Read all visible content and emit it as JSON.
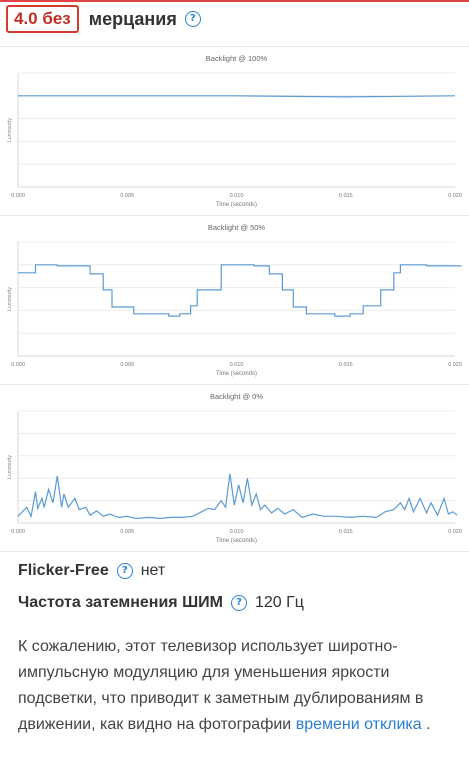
{
  "header": {
    "score": "4.0 без",
    "title": "мерцания",
    "help_glyph": "?"
  },
  "charts": [
    {
      "title": "Backlight @ 100%",
      "ylabel": "Luminosity",
      "xlabel": "Time (seconds)",
      "xticks": [
        "0.000",
        "0.005",
        "0.010",
        "0.015",
        "0.020"
      ]
    },
    {
      "title": "Backlight @ 50%",
      "ylabel": "Luminosity",
      "xlabel": "Time (seconds)",
      "xticks": [
        "0.000",
        "0.005",
        "0.010",
        "0.015",
        "0.020"
      ]
    },
    {
      "title": "Backlight @ 0%",
      "ylabel": "Luminosity",
      "xlabel": "Time (seconds)",
      "xticks": [
        "0.000",
        "0.005",
        "0.010",
        "0.015",
        "0.020"
      ]
    }
  ],
  "chart_data": [
    {
      "type": "line",
      "title": "Backlight @ 100%",
      "xlabel": "Time (seconds)",
      "ylabel": "Luminosity",
      "xlim": [
        0,
        0.02
      ],
      "ylim": [
        0,
        1
      ],
      "series": [
        {
          "x": [
            0,
            0.005,
            0.01,
            0.015,
            0.02
          ],
          "values": [
            0.8,
            0.8,
            0.8,
            0.79,
            0.8
          ]
        }
      ]
    },
    {
      "type": "line",
      "title": "Backlight @ 50%",
      "xlabel": "Time (seconds)",
      "ylabel": "Luminosity",
      "xlim": [
        0,
        0.02
      ],
      "ylim": [
        0,
        1
      ],
      "series": [
        {
          "x": [
            0,
            0.0008,
            0.0008,
            0.0018,
            0.0018,
            0.0033,
            0.0033,
            0.0039,
            0.0039,
            0.0043,
            0.0043,
            0.0053,
            0.0053,
            0.0069,
            0.0069,
            0.0074,
            0.0074,
            0.0079,
            0.0079,
            0.0082,
            0.0082,
            0.0093,
            0.0093,
            0.0108,
            0.0108,
            0.0115,
            0.0115,
            0.0121,
            0.0121,
            0.0126,
            0.0126,
            0.0132,
            0.0132,
            0.0145,
            0.0145,
            0.0152,
            0.0152,
            0.0158,
            0.0158,
            0.0166,
            0.0166,
            0.0172,
            0.0172,
            0.0175,
            0.0175,
            0.0187,
            0.0187,
            0.0203
          ],
          "values": [
            0.73,
            0.73,
            0.8,
            0.8,
            0.79,
            0.79,
            0.72,
            0.72,
            0.58,
            0.58,
            0.43,
            0.43,
            0.37,
            0.37,
            0.35,
            0.35,
            0.37,
            0.37,
            0.44,
            0.44,
            0.58,
            0.58,
            0.8,
            0.8,
            0.79,
            0.79,
            0.72,
            0.72,
            0.58,
            0.58,
            0.43,
            0.43,
            0.37,
            0.37,
            0.35,
            0.35,
            0.37,
            0.37,
            0.44,
            0.44,
            0.58,
            0.58,
            0.73,
            0.73,
            0.8,
            0.8,
            0.79,
            0.79
          ]
        }
      ]
    },
    {
      "type": "line",
      "title": "Backlight @ 0%",
      "xlabel": "Time (seconds)",
      "ylabel": "Luminosity",
      "xlim": [
        0,
        0.02
      ],
      "ylim": [
        0,
        1
      ],
      "series": [
        {
          "x": [
            0,
            0.0004,
            0.0006,
            0.0008,
            0.0009,
            0.0011,
            0.0012,
            0.0014,
            0.0016,
            0.0018,
            0.002,
            0.0021,
            0.0023,
            0.0026,
            0.0028,
            0.0031,
            0.0033,
            0.0036,
            0.0039,
            0.0042,
            0.0046,
            0.005,
            0.0054,
            0.006,
            0.0065,
            0.007,
            0.0075,
            0.008,
            0.0084,
            0.0087,
            0.009,
            0.0093,
            0.0095,
            0.0097,
            0.0099,
            0.0101,
            0.0103,
            0.0105,
            0.0107,
            0.0109,
            0.0111,
            0.0113,
            0.0116,
            0.0119,
            0.0122,
            0.0126,
            0.013,
            0.0135,
            0.014,
            0.0146,
            0.0152,
            0.0158,
            0.0164,
            0.0168,
            0.0172,
            0.0175,
            0.0177,
            0.0179,
            0.0181,
            0.0184,
            0.0187,
            0.0189,
            0.0192,
            0.0195,
            0.0197,
            0.0199,
            0.0201
          ],
          "values": [
            0.06,
            0.14,
            0.06,
            0.28,
            0.13,
            0.22,
            0.14,
            0.3,
            0.18,
            0.42,
            0.14,
            0.26,
            0.14,
            0.22,
            0.12,
            0.14,
            0.07,
            0.11,
            0.06,
            0.08,
            0.05,
            0.06,
            0.04,
            0.05,
            0.04,
            0.05,
            0.05,
            0.06,
            0.1,
            0.13,
            0.12,
            0.2,
            0.14,
            0.44,
            0.16,
            0.34,
            0.18,
            0.4,
            0.16,
            0.26,
            0.12,
            0.16,
            0.09,
            0.13,
            0.08,
            0.12,
            0.05,
            0.08,
            0.06,
            0.06,
            0.05,
            0.06,
            0.05,
            0.1,
            0.12,
            0.18,
            0.12,
            0.22,
            0.1,
            0.22,
            0.09,
            0.18,
            0.07,
            0.22,
            0.08,
            0.1,
            0.07
          ]
        }
      ]
    }
  ],
  "info": {
    "flicker_label": "Flicker-Free",
    "flicker_value": "нет",
    "pwm_label": "Частота затемнения ШИМ",
    "pwm_value": "120 Гц"
  },
  "description": {
    "text": "К сожалению, этот телевизор использует широтно-импульсную модуляцию для уменьшения яркости подсветки, что приводит к заметным дублированиям в движении, как видно на фотографии",
    "link": "времени отклика",
    "tail": " ."
  },
  "colors": {
    "accent": "#d23b2d",
    "link": "#2a7fd0",
    "line": "#5b9bd5",
    "help": "#2a83d6"
  }
}
